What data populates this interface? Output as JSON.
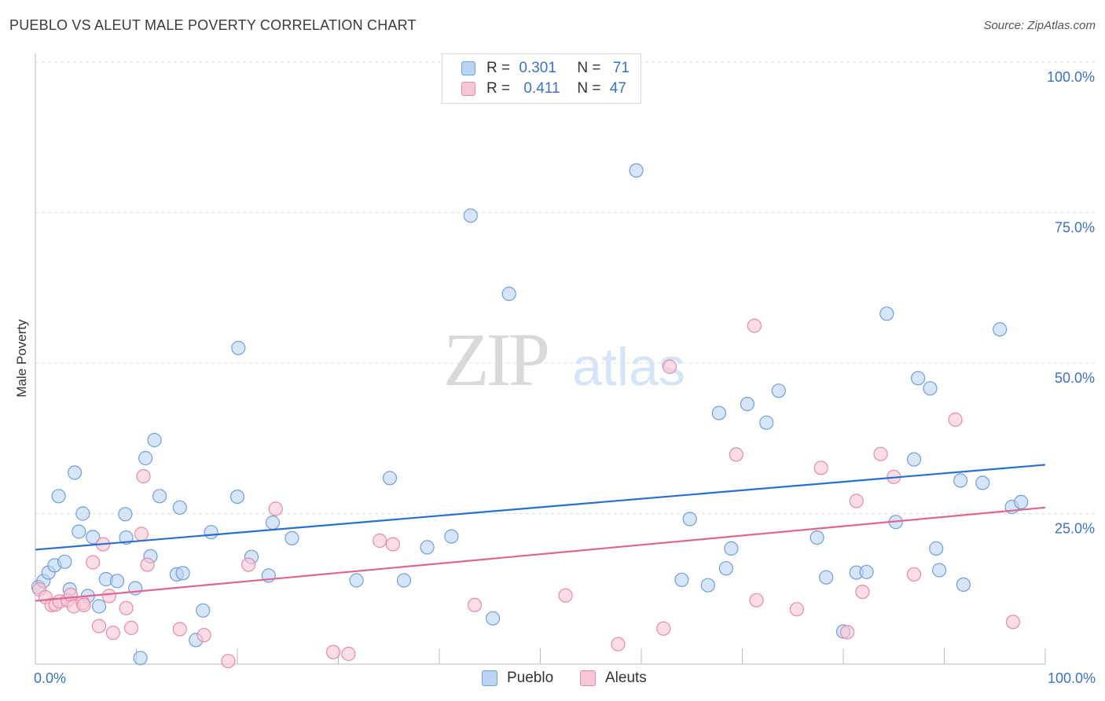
{
  "header": {
    "title": "PUEBLO VS ALEUT MALE POVERTY CORRELATION CHART",
    "source": "Source: ZipAtlas.com"
  },
  "watermark": {
    "zip": "ZIP",
    "atlas": "atlas"
  },
  "legend_top": [
    {
      "r_label": "R =",
      "r_value": "0.301",
      "n_label": "N =",
      "n_value": "71"
    },
    {
      "r_label": "R =",
      "r_value": "0.411",
      "n_label": "N =",
      "n_value": "47"
    }
  ],
  "legend_bottom": [
    {
      "label": "Pueblo"
    },
    {
      "label": "Aleuts"
    }
  ],
  "colors": {
    "pueblo_fill": "#bcd4f3",
    "pueblo_stroke": "#6f9fdc",
    "pueblo_line": "#2a6fd0",
    "aleut_fill": "#f8c6d5",
    "aleut_stroke": "#e78aa8",
    "aleut_line": "#e06690",
    "tick_label": "#3b72c6",
    "grid": "#dedede"
  },
  "chart_data": {
    "type": "scatter",
    "xlabel": "",
    "ylabel": "Male Poverty",
    "xlim": [
      0,
      100
    ],
    "ylim": [
      0,
      100
    ],
    "x_ticks": [
      {
        "value": 0,
        "label": "0.0%"
      },
      {
        "value": 100,
        "label": "100.0%"
      }
    ],
    "y_ticks": [
      {
        "value": 25,
        "label": "25.0%"
      },
      {
        "value": 50,
        "label": "50.0%"
      },
      {
        "value": 75,
        "label": "75.0%"
      },
      {
        "value": 100,
        "label": "100.0%"
      }
    ],
    "grid": true,
    "legend_position": "top-center",
    "series": [
      {
        "name": "Pueblo",
        "trend": [
          [
            0,
            19.0
          ],
          [
            100,
            33.1
          ]
        ],
        "points": [
          [
            0.3,
            12.8
          ],
          [
            0.8,
            13.8
          ],
          [
            1.3,
            15.2
          ],
          [
            1.9,
            16.4
          ],
          [
            2.3,
            27.9
          ],
          [
            2.9,
            17.0
          ],
          [
            3.4,
            12.4
          ],
          [
            3.9,
            31.8
          ],
          [
            4.3,
            22.0
          ],
          [
            4.7,
            25.0
          ],
          [
            5.2,
            11.3
          ],
          [
            5.7,
            21.1
          ],
          [
            6.3,
            9.6
          ],
          [
            7.0,
            14.1
          ],
          [
            8.1,
            13.8
          ],
          [
            8.9,
            24.9
          ],
          [
            9.0,
            21.0
          ],
          [
            9.9,
            12.6
          ],
          [
            10.4,
            1.0
          ],
          [
            10.9,
            34.2
          ],
          [
            11.4,
            17.9
          ],
          [
            11.8,
            37.2
          ],
          [
            12.3,
            27.9
          ],
          [
            14.0,
            14.9
          ],
          [
            14.3,
            26.0
          ],
          [
            14.6,
            15.1
          ],
          [
            15.9,
            4.0
          ],
          [
            16.6,
            8.9
          ],
          [
            17.4,
            21.9
          ],
          [
            20.1,
            52.5
          ],
          [
            20.0,
            27.8
          ],
          [
            21.4,
            17.8
          ],
          [
            23.1,
            14.7
          ],
          [
            23.5,
            23.5
          ],
          [
            25.4,
            20.9
          ],
          [
            31.8,
            13.9
          ],
          [
            35.1,
            30.9
          ],
          [
            36.5,
            13.9
          ],
          [
            38.8,
            19.4
          ],
          [
            41.2,
            21.2
          ],
          [
            43.1,
            74.5
          ],
          [
            45.3,
            7.6
          ],
          [
            46.9,
            61.5
          ],
          [
            59.5,
            82.0
          ],
          [
            64.0,
            14.0
          ],
          [
            64.8,
            24.1
          ],
          [
            66.6,
            13.1
          ],
          [
            67.7,
            41.7
          ],
          [
            68.4,
            15.9
          ],
          [
            68.9,
            19.2
          ],
          [
            70.5,
            43.2
          ],
          [
            72.4,
            40.1
          ],
          [
            73.6,
            45.4
          ],
          [
            77.4,
            21.0
          ],
          [
            78.3,
            14.4
          ],
          [
            80.0,
            5.4
          ],
          [
            81.3,
            15.2
          ],
          [
            82.3,
            15.3
          ],
          [
            84.3,
            58.2
          ],
          [
            85.2,
            23.6
          ],
          [
            87.0,
            34.0
          ],
          [
            87.4,
            47.5
          ],
          [
            88.6,
            45.8
          ],
          [
            89.2,
            19.2
          ],
          [
            89.5,
            15.6
          ],
          [
            91.6,
            30.5
          ],
          [
            91.9,
            13.2
          ],
          [
            93.8,
            30.1
          ],
          [
            95.5,
            55.6
          ],
          [
            96.7,
            26.1
          ],
          [
            97.6,
            26.9
          ]
        ]
      },
      {
        "name": "Aleuts",
        "trend": [
          [
            0,
            10.5
          ],
          [
            100,
            26.0
          ]
        ],
        "points": [
          [
            0.4,
            12.4
          ],
          [
            1.0,
            11.1
          ],
          [
            1.6,
            9.8
          ],
          [
            2.0,
            9.9
          ],
          [
            2.4,
            10.4
          ],
          [
            3.2,
            10.6
          ],
          [
            3.5,
            11.5
          ],
          [
            3.8,
            9.6
          ],
          [
            4.7,
            10.2
          ],
          [
            4.8,
            9.8
          ],
          [
            5.7,
            16.9
          ],
          [
            6.3,
            6.3
          ],
          [
            6.7,
            19.9
          ],
          [
            7.3,
            11.3
          ],
          [
            7.7,
            5.2
          ],
          [
            9.0,
            9.3
          ],
          [
            9.5,
            6.0
          ],
          [
            10.5,
            21.6
          ],
          [
            10.7,
            31.2
          ],
          [
            11.1,
            16.5
          ],
          [
            14.3,
            5.8
          ],
          [
            16.7,
            4.8
          ],
          [
            19.1,
            0.5
          ],
          [
            21.1,
            16.5
          ],
          [
            23.8,
            25.8
          ],
          [
            29.5,
            2.0
          ],
          [
            31.0,
            1.7
          ],
          [
            34.1,
            20.5
          ],
          [
            35.4,
            19.9
          ],
          [
            43.5,
            9.8
          ],
          [
            52.5,
            11.4
          ],
          [
            57.7,
            3.3
          ],
          [
            62.2,
            5.9
          ],
          [
            62.8,
            49.4
          ],
          [
            69.4,
            34.8
          ],
          [
            71.2,
            56.2
          ],
          [
            71.4,
            10.6
          ],
          [
            75.4,
            9.1
          ],
          [
            77.8,
            32.6
          ],
          [
            80.4,
            5.3
          ],
          [
            81.3,
            27.1
          ],
          [
            81.9,
            12.0
          ],
          [
            83.7,
            34.9
          ],
          [
            85.0,
            31.1
          ],
          [
            87.0,
            14.9
          ],
          [
            91.1,
            40.6
          ],
          [
            96.8,
            7.0
          ]
        ]
      }
    ]
  }
}
